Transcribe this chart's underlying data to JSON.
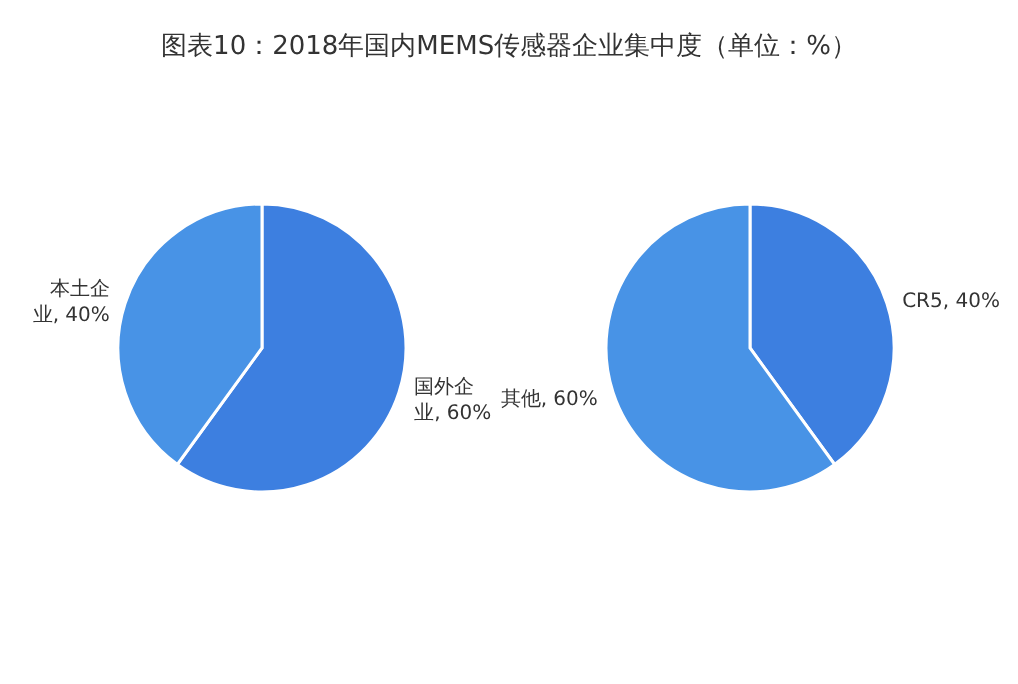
{
  "chart_data": [
    {
      "type": "pie",
      "title": "图表10：2018年国内MEMS传感器企业集中度（单位：%）",
      "categories": [
        "国外企业",
        "本土企业"
      ],
      "values": [
        60,
        40
      ],
      "colors": [
        "#3d7fe0",
        "#4893e6"
      ],
      "value_labels": [
        "60%",
        "40%"
      ],
      "legend": false
    },
    {
      "type": "pie",
      "categories": [
        "CR5",
        "其他"
      ],
      "values": [
        40,
        60
      ],
      "colors": [
        "#3d7fe0",
        "#4893e6"
      ],
      "value_labels": [
        "40%",
        "60%"
      ],
      "legend": false
    }
  ]
}
